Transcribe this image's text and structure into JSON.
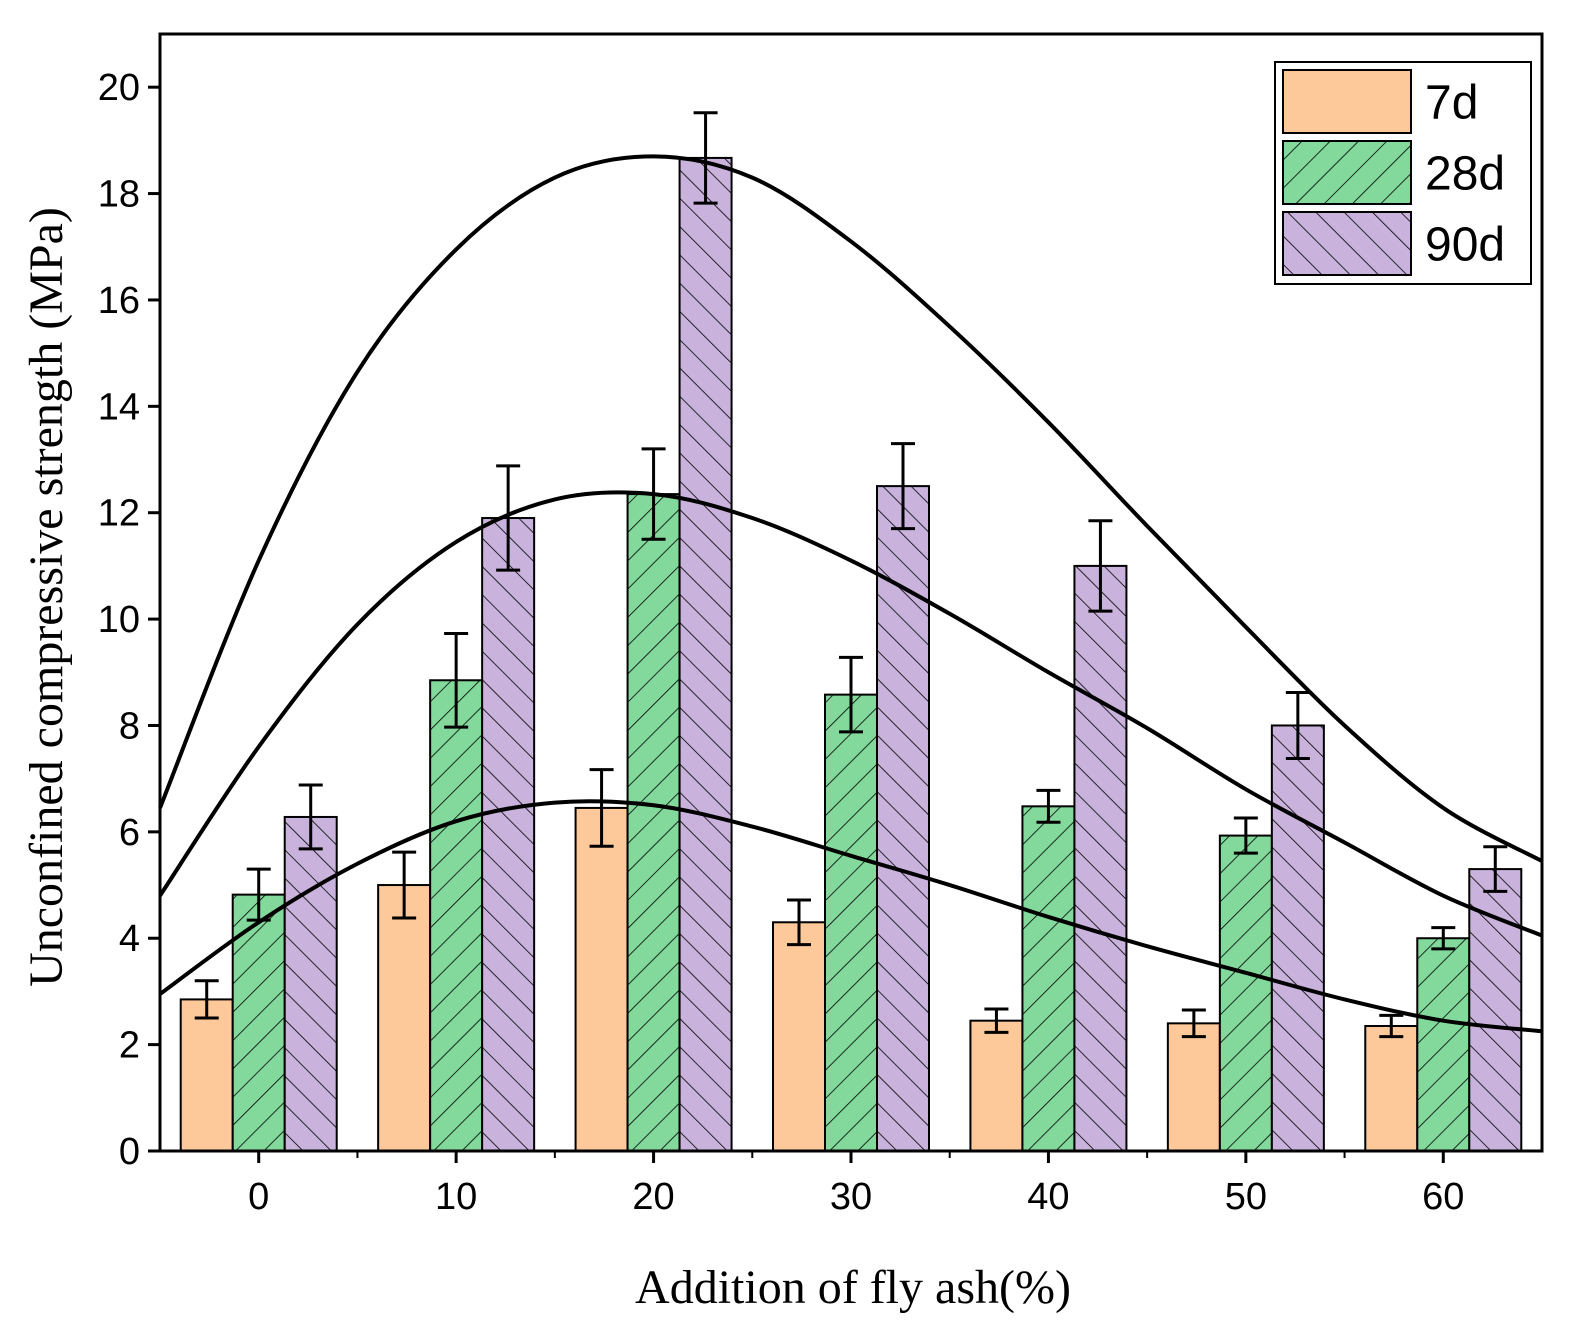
{
  "chart_data": {
    "type": "bar",
    "xlabel": "Addition of fly ash(%)",
    "ylabel": "Unconfined compressive strength (MPa)",
    "categories": [
      "0",
      "10",
      "20",
      "30",
      "40",
      "50",
      "60"
    ],
    "ylim": [
      0,
      21
    ],
    "xlim": [
      -5,
      65
    ],
    "yticks": [
      0,
      2,
      4,
      6,
      8,
      10,
      12,
      14,
      16,
      18,
      20
    ],
    "grid": false,
    "legend": "top-right",
    "series": [
      {
        "name": "7d",
        "color": "#fdc89a",
        "pattern": "none",
        "values": [
          2.85,
          5.0,
          6.45,
          4.3,
          2.45,
          2.4,
          2.35
        ],
        "errors": [
          0.35,
          0.62,
          0.72,
          0.42,
          0.22,
          0.25,
          0.2
        ]
      },
      {
        "name": "28d",
        "color": "#82d99b",
        "pattern": "forward-hatch",
        "values": [
          4.82,
          8.85,
          12.35,
          8.58,
          6.48,
          5.93,
          4.0
        ],
        "errors": [
          0.48,
          0.88,
          0.85,
          0.7,
          0.3,
          0.33,
          0.2
        ]
      },
      {
        "name": "90d",
        "color": "#c9b3dc",
        "pattern": "back-hatch",
        "values": [
          6.28,
          11.9,
          18.67,
          12.5,
          11.0,
          8.0,
          5.3
        ],
        "errors": [
          0.6,
          0.98,
          0.85,
          0.8,
          0.85,
          0.62,
          0.42
        ]
      }
    ],
    "fit_curves": [
      {
        "series": "7d",
        "x": [
          -5,
          0,
          5,
          10,
          15,
          20,
          25,
          30,
          35,
          40,
          45,
          50,
          55,
          60,
          65
        ],
        "y": [
          2.95,
          4.3,
          5.4,
          6.2,
          6.55,
          6.5,
          6.1,
          5.55,
          5.0,
          4.4,
          3.85,
          3.35,
          2.85,
          2.45,
          2.25
        ]
      },
      {
        "series": "28d",
        "x": [
          -5,
          0,
          5,
          10,
          15,
          20,
          25,
          30,
          35,
          40,
          45,
          50,
          55,
          60,
          65
        ],
        "y": [
          4.8,
          7.6,
          9.9,
          11.45,
          12.25,
          12.35,
          11.9,
          11.1,
          10.1,
          9.0,
          7.95,
          6.8,
          5.8,
          4.8,
          4.05
        ]
      },
      {
        "series": "90d",
        "x": [
          -5,
          0,
          5,
          10,
          15,
          20,
          25,
          30,
          35,
          40,
          45,
          50,
          55,
          60,
          65
        ],
        "y": [
          6.45,
          11.1,
          14.65,
          16.95,
          18.3,
          18.7,
          18.3,
          17.1,
          15.5,
          13.7,
          11.75,
          9.85,
          8.0,
          6.45,
          5.45
        ]
      }
    ]
  }
}
